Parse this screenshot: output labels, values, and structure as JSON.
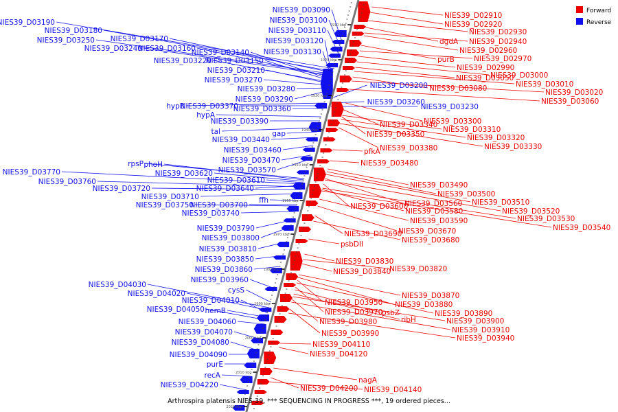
{
  "colors": {
    "forward": "#ee0000",
    "reverse": "#1010ee",
    "axis": "#777777",
    "tick": "#000000"
  },
  "legend": {
    "position": "top-right",
    "items": [
      {
        "label": "Forward",
        "color": "#ee0000"
      },
      {
        "label": "Reverse",
        "color": "#1010ee"
      }
    ]
  },
  "caption": "Arthrospira platensis NIES-39, *** SEQUENCING IN PROGRESS ***, 19 ordered pieces...",
  "axis": {
    "start_kbp": 1900,
    "end_kbp": 2020,
    "tick_labels": [
      "1910 kbp",
      "1920 kbp",
      "1930 kbp",
      "1940 kbp",
      "1950 kbp",
      "1960 kbp",
      "1970 kbp",
      "1980 kbp",
      "1990 kbp",
      "2000 kbp",
      "2010 kbp",
      "2020 kbp"
    ]
  },
  "reverse_labels": [
    "NIES39_D03090",
    "NIES39_D03100",
    "NIES39_D03110",
    "NIES39_D03190",
    "NIES39_D03180",
    "NIES39_D03170",
    "NIES39_D03250",
    "NIES39_D03120",
    "NIES39_D03240",
    "NIES39_D03160",
    "NIES39_D03130",
    "NIES39_D03140",
    "NIES39_D03150",
    "NIES39_D03220",
    "NIES39_D03210",
    "NIES39_D03270",
    "NIES39_D03280",
    "NIES39_D03290",
    "hypB",
    "NIES39_D03370",
    "NIES39_D03360",
    "hypA",
    "NIES39_D03390",
    "tal",
    "gap",
    "NIES39_D03440",
    "NIES39_D03460",
    "NIES39_D03470",
    "rpsP",
    "phoH",
    "NIES39_D03570",
    "NIES39_D03770",
    "NIES39_D03620",
    "NIES39_D03610",
    "NIES39_D03760",
    "NIES39_D03720",
    "NIES39_D03640",
    "NIES39_D03710",
    "ffh",
    "NIES39_D03750",
    "NIES39_D03700",
    "NIES39_D03740",
    "NIES39_D03790",
    "NIES39_D03800",
    "NIES39_D03810",
    "NIES39_D03850",
    "NIES39_D03860",
    "NIES39_D03960",
    "NIES39_D04030",
    "cysS",
    "NIES39_D04020",
    "NIES39_D04010",
    "hemB",
    "NIES39_D04050",
    "NIES39_D04060",
    "NIES39_D04070",
    "NIES39_D04080",
    "NIES39_D04090",
    "purE",
    "recA",
    "NIES39_D04220",
    "NIES39_D03200",
    "NIES39_D03260",
    "NIES39_D03230"
  ],
  "forward_labels": [
    "NIES39_D02910",
    "NIES39_D02920",
    "NIES39_D02930",
    "dgdA",
    "NIES39_D02940",
    "NIES39_D02960",
    "purB",
    "NIES39_D02970",
    "NIES39_D02990",
    "NIES39_D03000",
    "NIES39_D03050",
    "NIES39_D03010",
    "NIES39_D03080",
    "NIES39_D03020",
    "NIES39_D03060",
    "NIES39_D03300",
    "NIES39_D03340",
    "NIES39_D03310",
    "NIES39_D03350",
    "NIES39_D03320",
    "NIES39_D03380",
    "NIES39_D03330",
    "pfkA",
    "NIES39_D03480",
    "NIES39_D03490",
    "NIES39_D03500",
    "NIES39_D03510",
    "NIES39_D03560",
    "NIES39_D03520",
    "NIES39_D03600",
    "NIES39_D03580",
    "NIES39_D03530",
    "NIES39_D03540",
    "NIES39_D03590",
    "NIES39_D03670",
    "NIES39_D03690",
    "NIES39_D03680",
    "psbDII",
    "NIES39_D03830",
    "NIES39_D03820",
    "NIES39_D03840",
    "NIES39_D03870",
    "NIES39_D03880",
    "NIES39_D03950",
    "NIES39_D03890",
    "NIES39_D03970",
    "psbZ",
    "ribH",
    "NIES39_D03900",
    "NIES39_D03980",
    "NIES39_D03910",
    "NIES39_D03990",
    "NIES39_D03940",
    "NIES39_D04110",
    "NIES39_D04120",
    "nagA",
    "NIES39_D04200",
    "NIES39_D04140"
  ]
}
